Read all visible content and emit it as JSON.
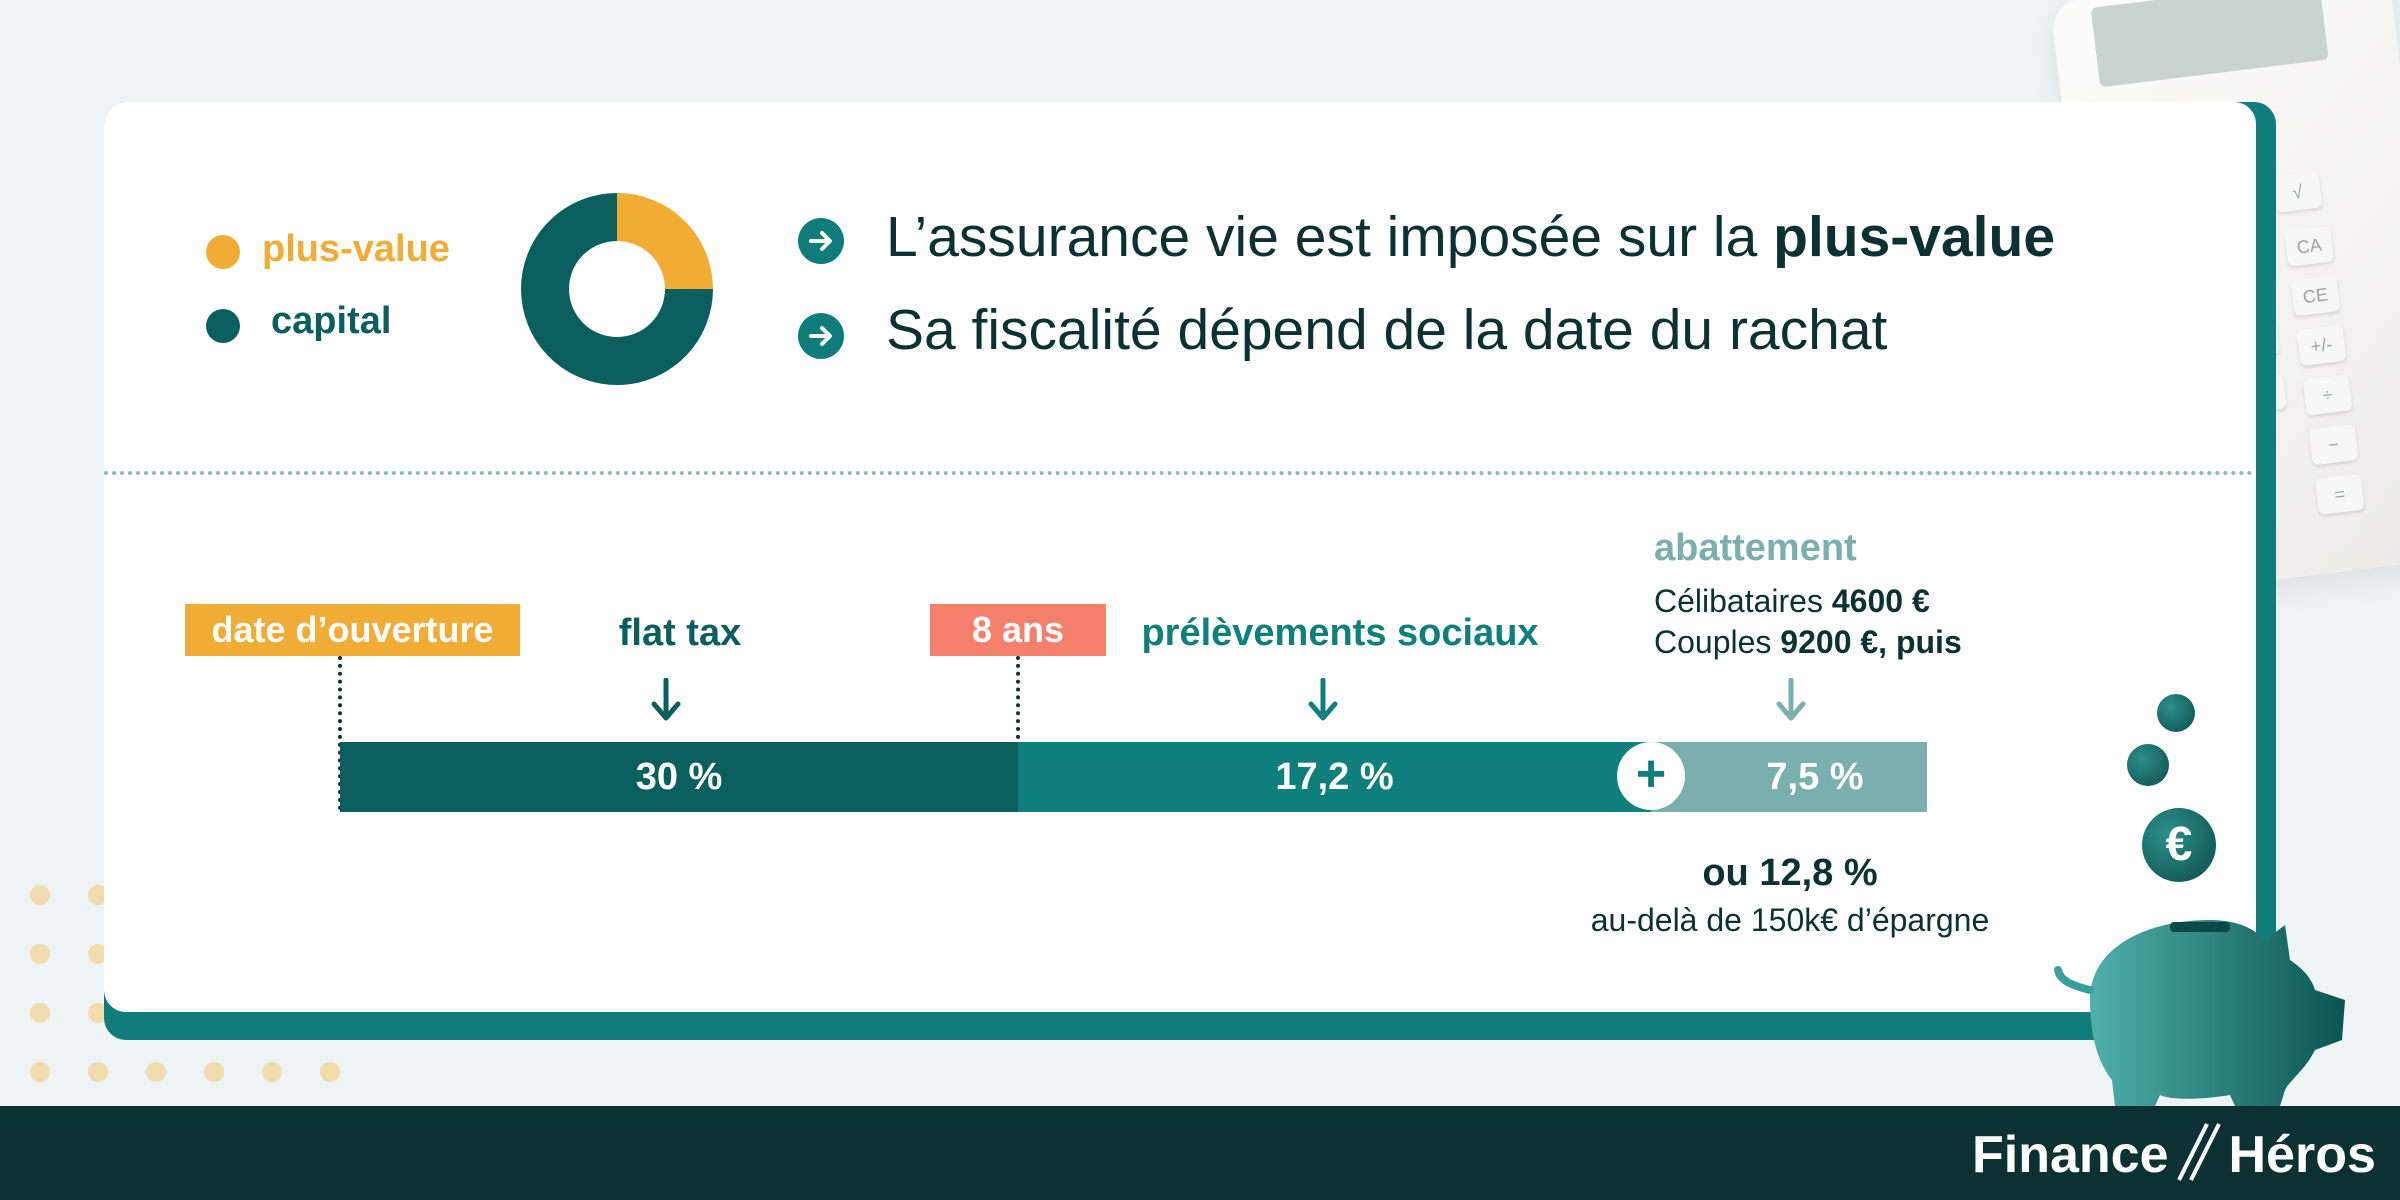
{
  "legend": {
    "items": [
      {
        "label": "plus-value",
        "color": "#f0ac35"
      },
      {
        "label": "capital",
        "color": "#0b5e5e"
      }
    ]
  },
  "donut": {
    "segments": [
      {
        "name": "plus-value",
        "fraction": 0.25,
        "color": "#f0ac35"
      },
      {
        "name": "capital",
        "fraction": 0.75,
        "color": "#0b5e5e"
      }
    ]
  },
  "statements": {
    "line1_prefix": "L’assurance vie est imposée sur la ",
    "line1_bold": "plus-value",
    "line2": "Sa fiscalité dépend de la date du rachat"
  },
  "timeline": {
    "start_tag": "date d’ouverture",
    "mid_tag": "8 ans",
    "flat_tax_label": "flat tax",
    "social_label": "prélèvements sociaux",
    "abattement_title": "abattement",
    "abattement_line1_prefix": "Célibataires ",
    "abattement_line1_bold": "4600 €",
    "abattement_line2_prefix": "Couples ",
    "abattement_line2_bold": "9200 €, puis",
    "seg_flat_tax": "30 %",
    "seg_social": "17,2 %",
    "seg_abattement": "7,5 %",
    "plus_symbol": "+",
    "alt_rate": "ou 12,8 %",
    "alt_note": "au-delà de 150k€ d’épargne"
  },
  "colors": {
    "dark_teal": "#0b5e5e",
    "teal": "#0e7f7b",
    "light_teal": "#7aafae",
    "orange": "#f0ac35",
    "salmon": "#f4806c",
    "navy": "#0b3133"
  },
  "footer": {
    "logo_left": "Finance",
    "logo_right": "Héros"
  },
  "icons": {
    "statement_bullet": "arrow-right-circle-icon",
    "timeline_pointer": "arrow-down-icon",
    "coin": "euro-coin-icon",
    "piggy": "piggy-bank-icon"
  }
}
